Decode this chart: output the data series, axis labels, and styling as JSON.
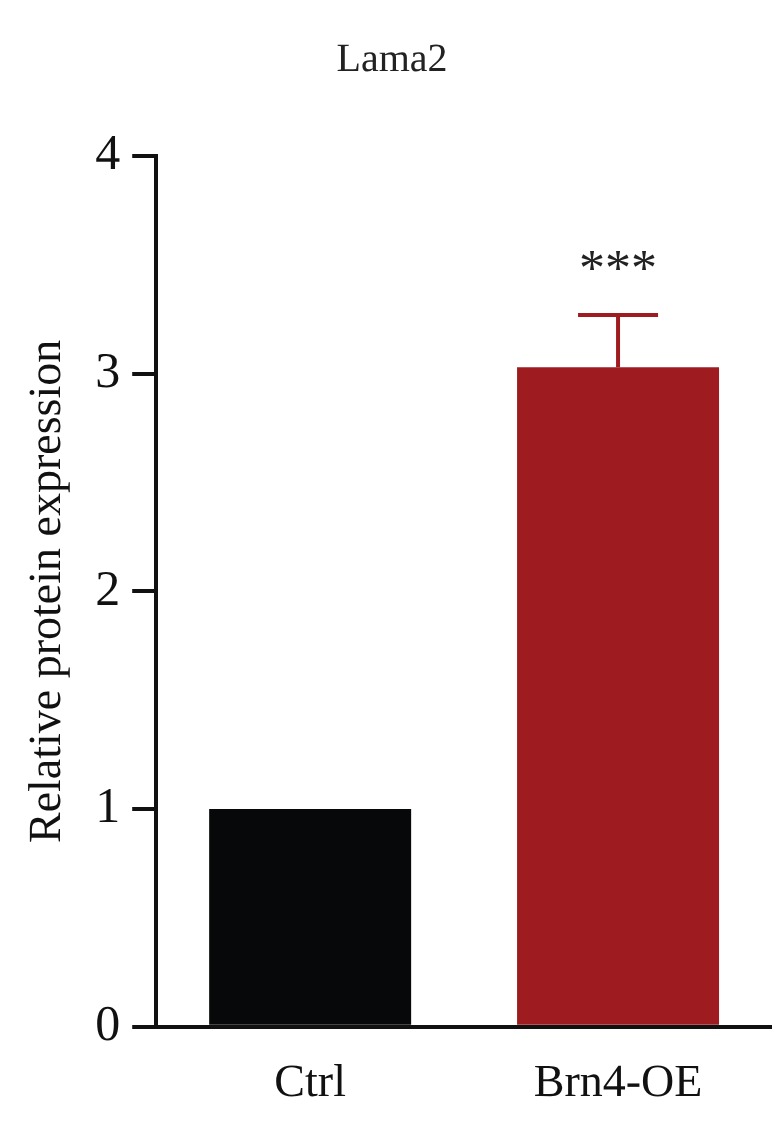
{
  "chart_data": {
    "type": "bar",
    "title": "Lama2",
    "ylabel": "Relative protein expression",
    "categories": [
      "Ctrl",
      "Brn4-OE"
    ],
    "values": [
      1.0,
      3.03
    ],
    "colors": [
      "#070809",
      "#9e1c20"
    ],
    "errors": [
      null,
      [
        3.03,
        3.27
      ]
    ],
    "annotations": [
      "***"
    ],
    "ylim": [
      0,
      4
    ],
    "yticks": [
      0,
      1,
      2,
      3,
      4
    ],
    "grid": false,
    "legend": false
  }
}
